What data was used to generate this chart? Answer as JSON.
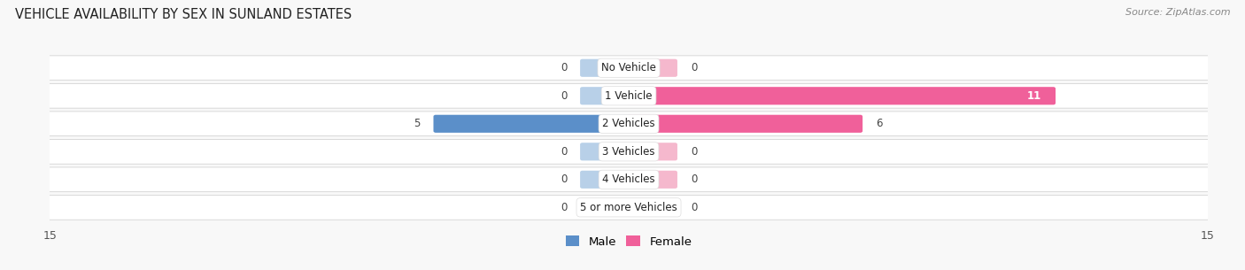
{
  "title": "VEHICLE AVAILABILITY BY SEX IN SUNLAND ESTATES",
  "source": "Source: ZipAtlas.com",
  "categories": [
    "No Vehicle",
    "1 Vehicle",
    "2 Vehicles",
    "3 Vehicles",
    "4 Vehicles",
    "5 or more Vehicles"
  ],
  "male_values": [
    0,
    0,
    5,
    0,
    0,
    0
  ],
  "female_values": [
    0,
    11,
    6,
    0,
    0,
    0
  ],
  "male_light": "#b8d0e8",
  "male_dark": "#5b8fc9",
  "female_light": "#f5b8cd",
  "female_dark": "#f0609a",
  "xlim": 15,
  "row_bg": "#f0f0f4",
  "fig_bg": "#f8f8f8",
  "legend_male": "Male",
  "legend_female": "Female"
}
